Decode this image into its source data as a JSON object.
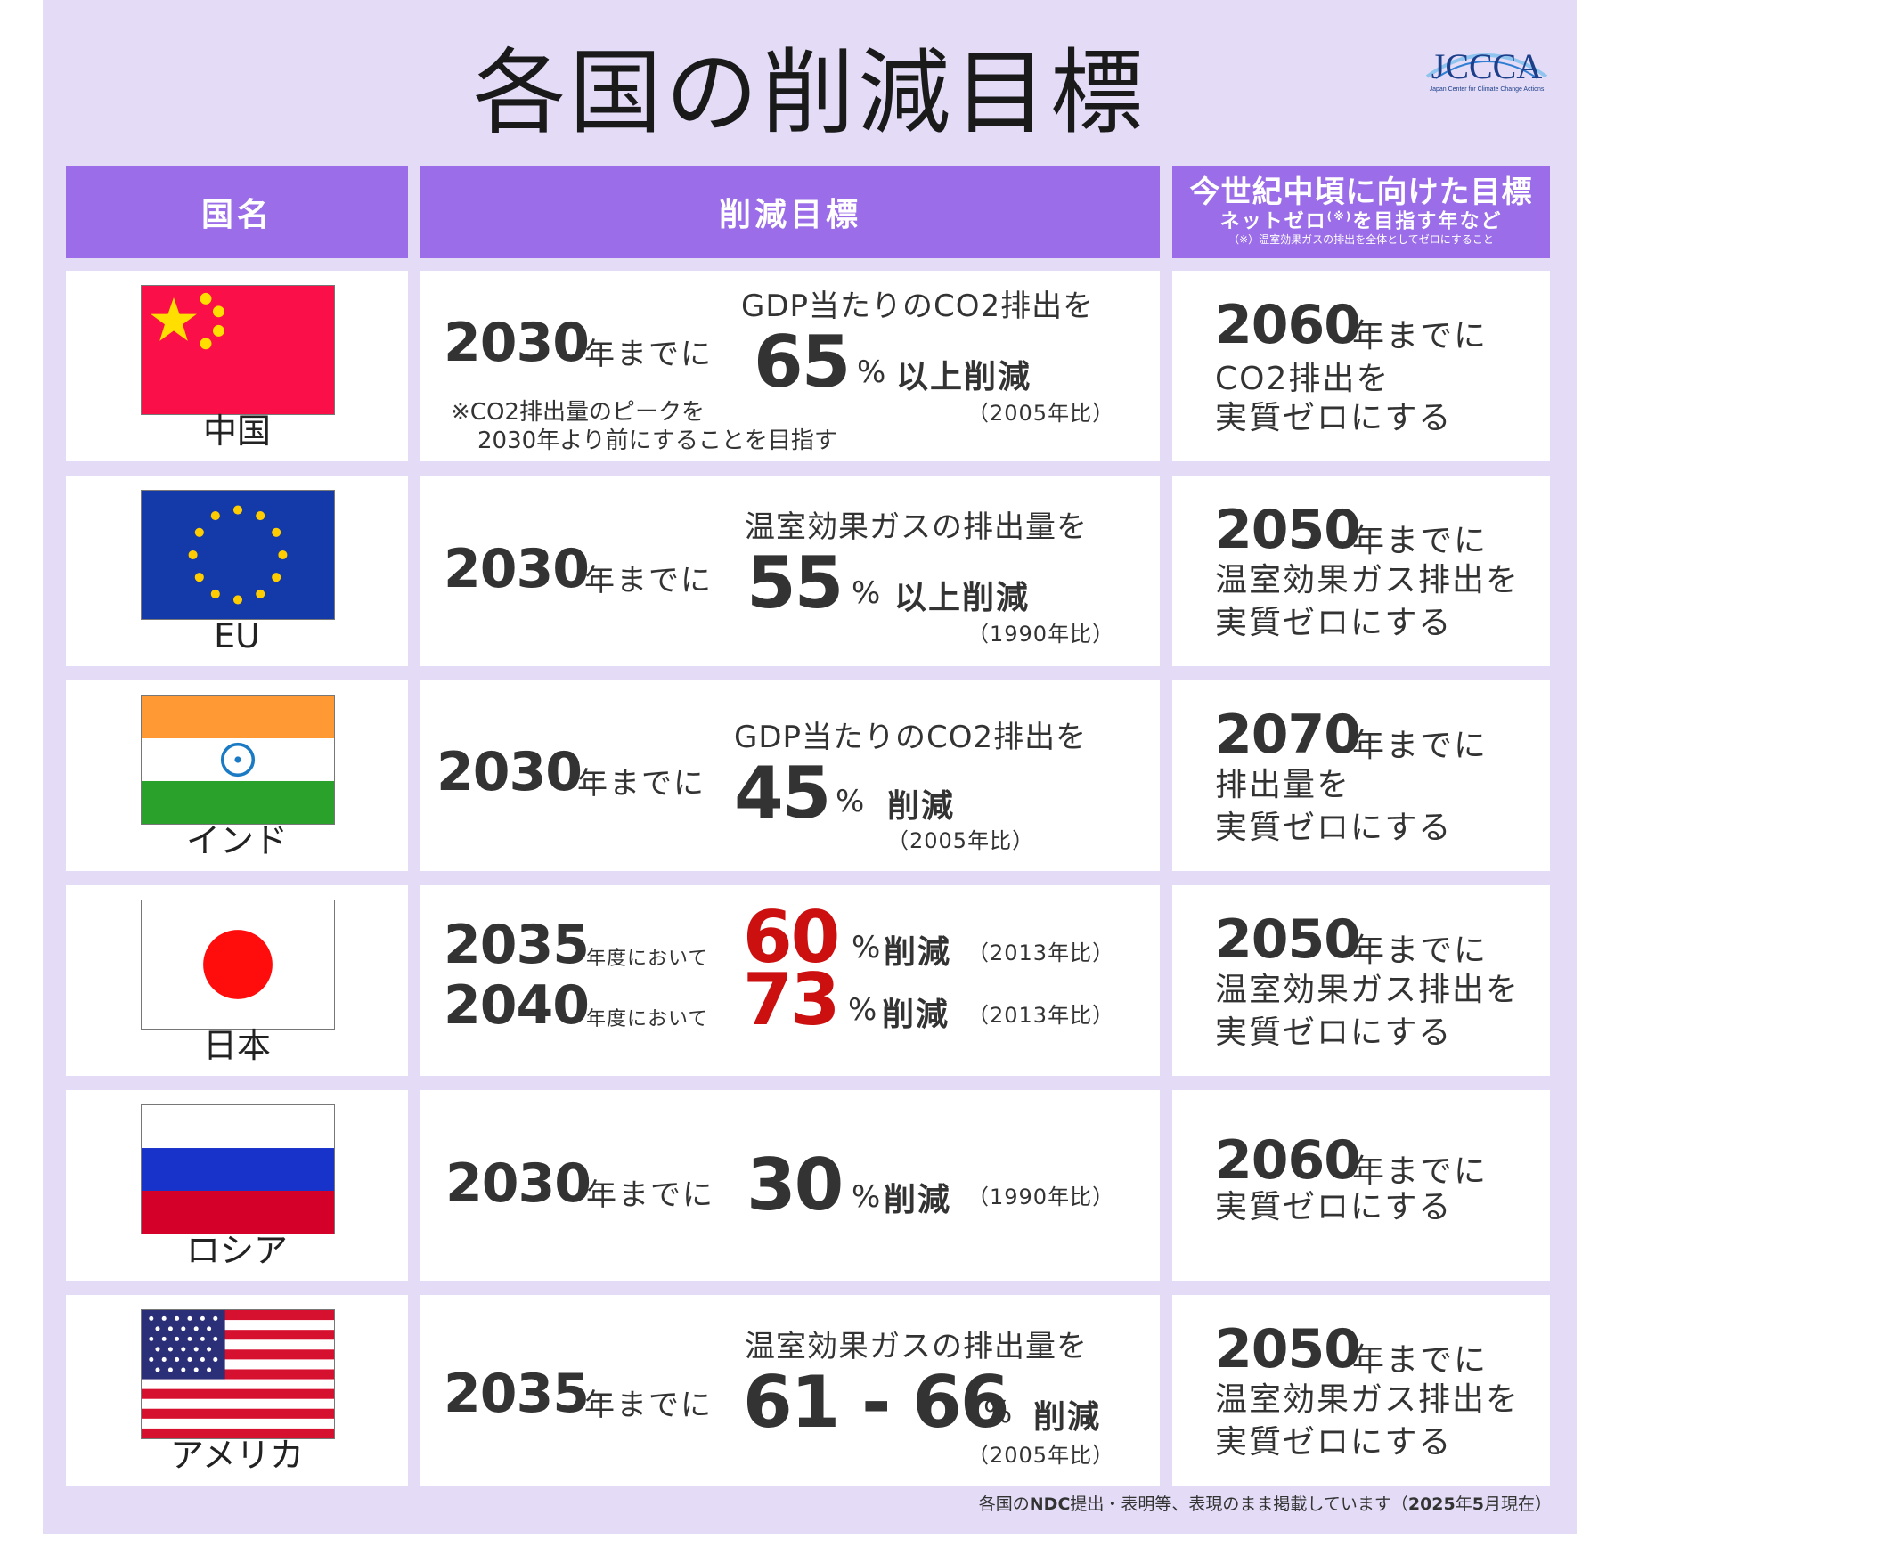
{
  "title": "各国の削減目標",
  "logo": {
    "text": "JCCCA",
    "subtitle": "Japan Center for Climate Change Actions"
  },
  "headers": {
    "country": "国名",
    "target": "削減目標",
    "netzero": "今世紀中頃に向けた目標",
    "netzero_sub_a": "ネットゼロ",
    "netzero_sub_mark": "(※)",
    "netzero_sub_b": "を目指す年など",
    "netzero_note": "（※）温室効果ガスの排出を全体としてゼロにすること"
  },
  "rows": [
    {
      "country": "中国",
      "flag": "china-flag",
      "target_year": "2030",
      "year_suffix": "年までに",
      "target_label": "GDP当たりのCO2排出を",
      "percent": "65",
      "percent_sign": "%",
      "action": "以上削減",
      "baseline": "（2005年比）",
      "note_line1": "※CO2排出量のピークを",
      "note_line2": "2030年より前にすることを目指す",
      "nz_year": "2060",
      "nz_suffix": "年までに",
      "nz_line1": "CO2排出を",
      "nz_line2": "実質ゼロにする"
    },
    {
      "country": "EU",
      "flag": "eu-flag",
      "target_year": "2030",
      "year_suffix": "年までに",
      "target_label": "温室効果ガスの排出量を",
      "percent": "55",
      "percent_sign": "%",
      "action": "以上削減",
      "baseline": "（1990年比）",
      "nz_year": "2050",
      "nz_suffix": "年までに",
      "nz_line1": "温室効果ガス排出を",
      "nz_line2": "実質ゼロにする"
    },
    {
      "country": "インド",
      "flag": "india-flag",
      "target_year": "2030",
      "year_suffix": "年までに",
      "target_label": "GDP当たりのCO2排出を",
      "percent": "45",
      "percent_sign": "%",
      "action": "削減",
      "baseline": "（2005年比）",
      "nz_year": "2070",
      "nz_suffix": "年までに",
      "nz_line1": "排出量を",
      "nz_line2": "実質ゼロにする"
    },
    {
      "country": "日本",
      "flag": "japan-flag",
      "target_year": "2035",
      "year_suffix": "年度において",
      "percent": "60",
      "percent_sign": "%",
      "action": "削減",
      "baseline": "（2013年比）",
      "target_year2": "2040",
      "year_suffix2": "年度において",
      "percent2": "73",
      "percent_sign2": "%",
      "action2": "削減",
      "baseline2": "（2013年比）",
      "nz_year": "2050",
      "nz_suffix": "年までに",
      "nz_line1": "温室効果ガス排出を",
      "nz_line2": "実質ゼロにする"
    },
    {
      "country": "ロシア",
      "flag": "russia-flag",
      "target_year": "2030",
      "year_suffix": "年までに",
      "percent": "30",
      "percent_sign": "%",
      "action": "削減",
      "baseline": "（1990年比）",
      "nz_year": "2060",
      "nz_suffix": "年までに",
      "nz_line1": "実質ゼロにする"
    },
    {
      "country": "アメリカ",
      "flag": "usa-flag",
      "target_year": "2035",
      "year_suffix": "年までに",
      "target_label": "温室効果ガスの排出量を",
      "percent": "61 - 66",
      "percent_sign": "%",
      "action": "削減",
      "baseline": "（2005年比）",
      "nz_year": "2050",
      "nz_suffix": "年までに",
      "nz_line1": "温室効果ガス排出を",
      "nz_line2": "実質ゼロにする"
    }
  ],
  "footer": {
    "a": "各国の",
    "b": "NDC",
    "c": "提出・表明等、表現のまま掲載しています（",
    "d": "2025",
    "e": "年",
    "f": "5",
    "g": "月現在）"
  },
  "colors": {
    "background": "#e4dcf6",
    "header": "#9b6de8",
    "japan_highlight": "#cc0f0f"
  }
}
